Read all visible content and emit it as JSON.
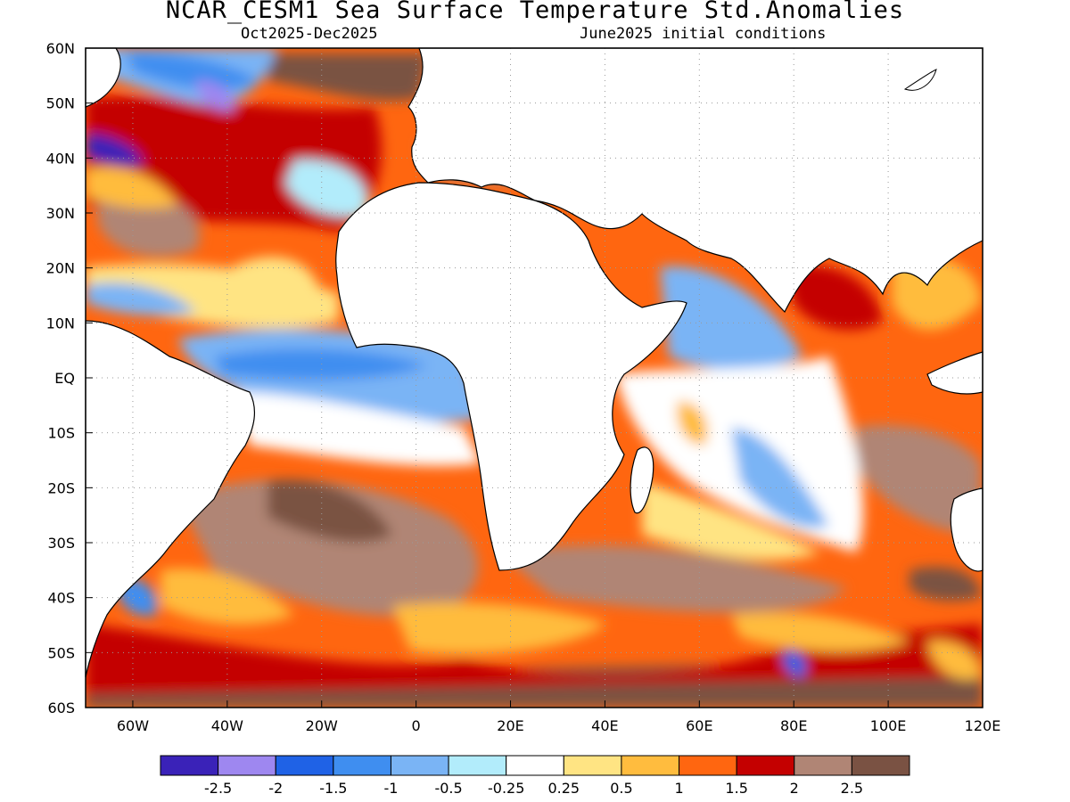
{
  "title": "NCAR_CESM1 Sea Surface Temperature Std.Anomalies",
  "subtitle_left": "Oct2025-Dec2025",
  "subtitle_right": "June2025 initial conditions",
  "lat_labels": [
    "60N",
    "50N",
    "40N",
    "30N",
    "20N",
    "10N",
    "EQ",
    "10S",
    "20S",
    "30S",
    "40S",
    "50S",
    "60S"
  ],
  "lon_labels": [
    "60W",
    "40W",
    "20W",
    "0",
    "20E",
    "40E",
    "60E",
    "80E",
    "100E",
    "120E"
  ],
  "colorbar": {
    "colors": [
      "#3a22b8",
      "#9e87f0",
      "#1f62e6",
      "#3f8ef0",
      "#7ab4f5",
      "#b2ecfb",
      "#ffffff",
      "#ffe483",
      "#ffbc3e",
      "#ff6610",
      "#c40000",
      "#b08575",
      "#7a5243"
    ],
    "labels": [
      "-2.5",
      "-2",
      "-1.5",
      "-1",
      "-0.5",
      "-0.25",
      "0.25",
      "0.5",
      "1",
      "1.5",
      "2",
      "2.5"
    ]
  },
  "colors": {
    "land": "#ffffff",
    "coast": "#000000",
    "grid": "#9a9a9a"
  }
}
